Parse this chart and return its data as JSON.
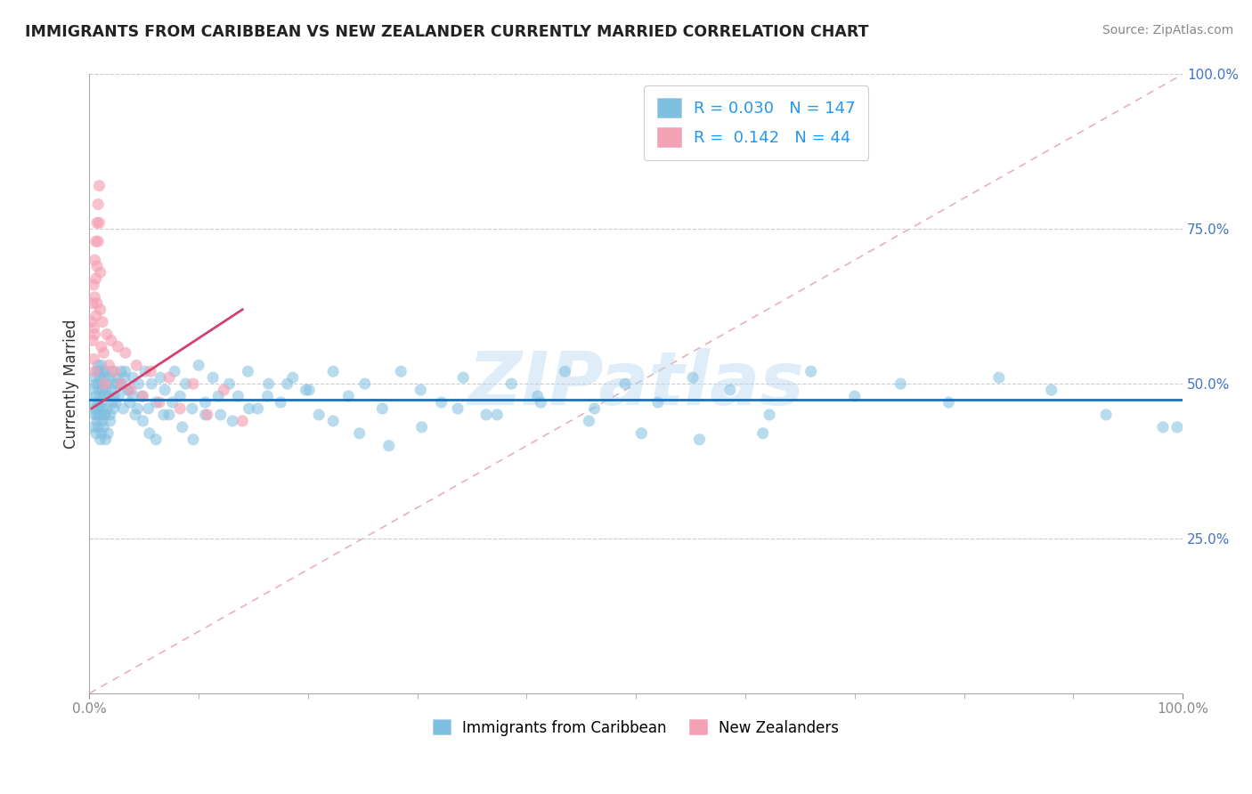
{
  "title": "IMMIGRANTS FROM CARIBBEAN VS NEW ZEALANDER CURRENTLY MARRIED CORRELATION CHART",
  "source": "Source: ZipAtlas.com",
  "ylabel": "Currently Married",
  "xlim": [
    0.0,
    1.0
  ],
  "ylim": [
    0.0,
    1.0
  ],
  "xticks": [
    0.0,
    1.0
  ],
  "yticks": [
    0.25,
    0.5,
    0.75,
    1.0
  ],
  "xticklabels": [
    "0.0%",
    "100.0%"
  ],
  "yticklabels": [
    "25.0%",
    "50.0%",
    "75.0%",
    "100.0%"
  ],
  "legend_labels": [
    "Immigrants from Caribbean",
    "New Zealanders"
  ],
  "blue_R": 0.03,
  "blue_N": 147,
  "pink_R": 0.142,
  "pink_N": 44,
  "blue_color": "#7fbfdf",
  "pink_color": "#f4a0b5",
  "blue_line_color": "#1a6fba",
  "pink_line_color": "#d44070",
  "diag_line_color": "#e8b0c0",
  "grid_color": "#cccccc",
  "watermark": "ZIPatlas",
  "blue_scatter_x": [
    0.003,
    0.004,
    0.005,
    0.005,
    0.006,
    0.006,
    0.007,
    0.007,
    0.008,
    0.008,
    0.008,
    0.009,
    0.009,
    0.009,
    0.01,
    0.01,
    0.01,
    0.011,
    0.011,
    0.011,
    0.012,
    0.012,
    0.013,
    0.013,
    0.014,
    0.014,
    0.015,
    0.015,
    0.016,
    0.016,
    0.017,
    0.018,
    0.019,
    0.02,
    0.021,
    0.022,
    0.023,
    0.024,
    0.025,
    0.027,
    0.029,
    0.031,
    0.033,
    0.035,
    0.037,
    0.04,
    0.042,
    0.045,
    0.048,
    0.051,
    0.054,
    0.057,
    0.061,
    0.065,
    0.069,
    0.073,
    0.078,
    0.083,
    0.088,
    0.094,
    0.1,
    0.106,
    0.113,
    0.12,
    0.128,
    0.136,
    0.145,
    0.154,
    0.164,
    0.175,
    0.186,
    0.198,
    0.21,
    0.223,
    0.237,
    0.252,
    0.268,
    0.285,
    0.303,
    0.322,
    0.342,
    0.363,
    0.386,
    0.41,
    0.435,
    0.462,
    0.49,
    0.52,
    0.552,
    0.586,
    0.622,
    0.66,
    0.7,
    0.742,
    0.786,
    0.832,
    0.88,
    0.93,
    0.982,
    0.995,
    0.004,
    0.005,
    0.006,
    0.007,
    0.008,
    0.009,
    0.01,
    0.011,
    0.012,
    0.013,
    0.014,
    0.015,
    0.017,
    0.019,
    0.021,
    0.023,
    0.026,
    0.029,
    0.032,
    0.036,
    0.04,
    0.044,
    0.049,
    0.055,
    0.061,
    0.068,
    0.076,
    0.085,
    0.095,
    0.106,
    0.118,
    0.131,
    0.146,
    0.163,
    0.181,
    0.201,
    0.223,
    0.247,
    0.274,
    0.304,
    0.337,
    0.373,
    0.413,
    0.457,
    0.505,
    0.558,
    0.616
  ],
  "blue_scatter_y": [
    0.49,
    0.47,
    0.51,
    0.46,
    0.5,
    0.48,
    0.52,
    0.45,
    0.5,
    0.47,
    0.53,
    0.46,
    0.49,
    0.52,
    0.45,
    0.48,
    0.51,
    0.47,
    0.5,
    0.53,
    0.46,
    0.49,
    0.52,
    0.48,
    0.51,
    0.45,
    0.49,
    0.52,
    0.46,
    0.5,
    0.48,
    0.51,
    0.45,
    0.49,
    0.52,
    0.46,
    0.5,
    0.47,
    0.51,
    0.48,
    0.5,
    0.46,
    0.52,
    0.49,
    0.47,
    0.51,
    0.45,
    0.5,
    0.48,
    0.52,
    0.46,
    0.5,
    0.47,
    0.51,
    0.49,
    0.45,
    0.52,
    0.48,
    0.5,
    0.46,
    0.53,
    0.47,
    0.51,
    0.45,
    0.5,
    0.48,
    0.52,
    0.46,
    0.5,
    0.47,
    0.51,
    0.49,
    0.45,
    0.52,
    0.48,
    0.5,
    0.46,
    0.52,
    0.49,
    0.47,
    0.51,
    0.45,
    0.5,
    0.48,
    0.52,
    0.46,
    0.5,
    0.47,
    0.51,
    0.49,
    0.45,
    0.52,
    0.48,
    0.5,
    0.47,
    0.51,
    0.49,
    0.45,
    0.43,
    0.43,
    0.43,
    0.45,
    0.42,
    0.44,
    0.43,
    0.45,
    0.41,
    0.42,
    0.44,
    0.43,
    0.45,
    0.41,
    0.42,
    0.44,
    0.47,
    0.48,
    0.5,
    0.52,
    0.51,
    0.49,
    0.48,
    0.46,
    0.44,
    0.42,
    0.41,
    0.45,
    0.47,
    0.43,
    0.41,
    0.45,
    0.48,
    0.44,
    0.46,
    0.48,
    0.5,
    0.49,
    0.44,
    0.42,
    0.4,
    0.43,
    0.46,
    0.45,
    0.47,
    0.44,
    0.42,
    0.41,
    0.42
  ],
  "pink_scatter_x": [
    0.002,
    0.003,
    0.003,
    0.004,
    0.004,
    0.004,
    0.005,
    0.005,
    0.005,
    0.005,
    0.006,
    0.006,
    0.006,
    0.007,
    0.007,
    0.007,
    0.008,
    0.008,
    0.009,
    0.009,
    0.01,
    0.01,
    0.011,
    0.012,
    0.013,
    0.014,
    0.016,
    0.018,
    0.02,
    0.023,
    0.026,
    0.029,
    0.033,
    0.038,
    0.043,
    0.049,
    0.056,
    0.064,
    0.073,
    0.083,
    0.095,
    0.108,
    0.123,
    0.14
  ],
  "pink_scatter_y": [
    0.6,
    0.63,
    0.57,
    0.66,
    0.59,
    0.54,
    0.7,
    0.64,
    0.58,
    0.52,
    0.73,
    0.67,
    0.61,
    0.76,
    0.69,
    0.63,
    0.79,
    0.73,
    0.82,
    0.76,
    0.68,
    0.62,
    0.56,
    0.6,
    0.55,
    0.5,
    0.58,
    0.53,
    0.57,
    0.52,
    0.56,
    0.5,
    0.55,
    0.49,
    0.53,
    0.48,
    0.52,
    0.47,
    0.51,
    0.46,
    0.5,
    0.45,
    0.49,
    0.44
  ],
  "pink_trend_x0": 0.002,
  "pink_trend_x1": 0.14,
  "pink_trend_y0": 0.46,
  "pink_trend_y1": 0.62,
  "blue_trend_y": 0.474
}
